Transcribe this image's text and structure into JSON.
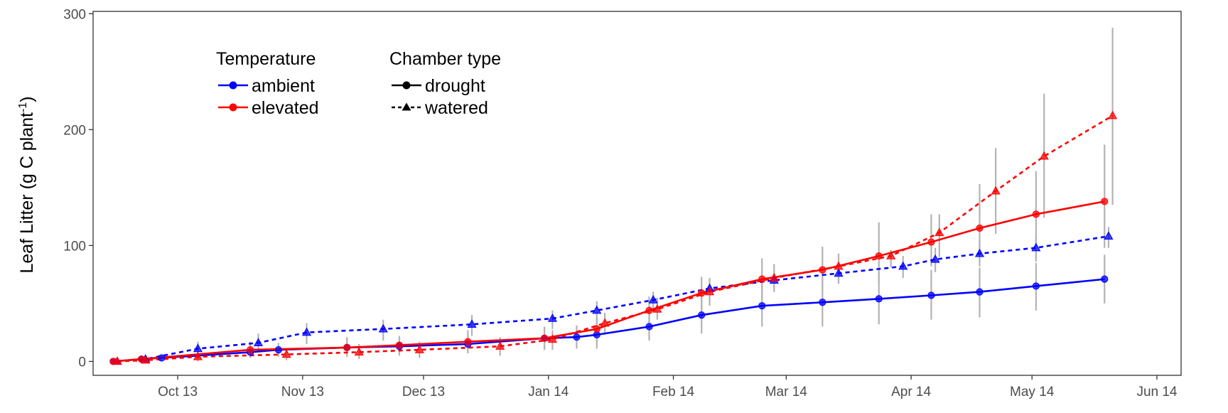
{
  "chart_data": {
    "type": "line",
    "ylabel": "Leaf Litter (g C plant",
    "ylabel_sup": "-1",
    "ylabel_close": ")",
    "xlabel": "",
    "x_range": [
      "2013-09-10",
      "2014-06-07"
    ],
    "ylim": [
      -12,
      302
    ],
    "y_ticks": [
      0,
      100,
      200,
      300
    ],
    "x_ticks": [
      {
        "date": "2013-10-01",
        "label": "Oct 13"
      },
      {
        "date": "2013-11-01",
        "label": "Nov 13"
      },
      {
        "date": "2013-12-01",
        "label": "Dec 13"
      },
      {
        "date": "2014-01-01",
        "label": "Jan 14"
      },
      {
        "date": "2014-02-01",
        "label": "Feb 14"
      },
      {
        "date": "2014-03-01",
        "label": "Mar 14"
      },
      {
        "date": "2014-04-01",
        "label": "Apr 14"
      },
      {
        "date": "2014-05-01",
        "label": "May 14"
      },
      {
        "date": "2014-06-01",
        "label": "Jun 14"
      }
    ],
    "grid": false,
    "legend_placement": "top-left",
    "legend": {
      "temperature_title": "Temperature",
      "temperature_items": [
        {
          "label": "ambient",
          "color": "#0000ff"
        },
        {
          "label": "elevated",
          "color": "#ff0000"
        }
      ],
      "chamber_title": "Chamber type",
      "chamber_items": [
        {
          "label": "drought",
          "line": "solid",
          "marker": "circle"
        },
        {
          "label": "watered",
          "line": "dashed",
          "marker": "triangle"
        }
      ]
    },
    "errorbar_color": "#b3b3b3",
    "series": [
      {
        "name": "ambient drought",
        "temperature": "ambient",
        "chamber": "drought",
        "color": "#0000ff",
        "line": "solid",
        "marker": "circle",
        "points": [
          {
            "x": "2013-09-15",
            "y": 0,
            "lo": 0,
            "hi": 1
          },
          {
            "x": "2013-09-22",
            "y": 2,
            "lo": 0,
            "hi": 4
          },
          {
            "x": "2013-09-27",
            "y": 3,
            "lo": 1,
            "hi": 5
          },
          {
            "x": "2013-10-19",
            "y": 8,
            "lo": 3,
            "hi": 13
          },
          {
            "x": "2013-10-26",
            "y": 10,
            "lo": 4,
            "hi": 16
          },
          {
            "x": "2013-11-12",
            "y": 12,
            "lo": 4,
            "hi": 20
          },
          {
            "x": "2013-11-25",
            "y": 13,
            "lo": 6,
            "hi": 20
          },
          {
            "x": "2013-12-12",
            "y": 15,
            "lo": 7,
            "hi": 23
          },
          {
            "x": "2013-12-31",
            "y": 20,
            "lo": 10,
            "hi": 30
          },
          {
            "x": "2014-01-08",
            "y": 21,
            "lo": 11,
            "hi": 31
          },
          {
            "x": "2014-01-13",
            "y": 23,
            "lo": 11,
            "hi": 35
          },
          {
            "x": "2014-01-26",
            "y": 30,
            "lo": 18,
            "hi": 43
          },
          {
            "x": "2014-02-08",
            "y": 40,
            "lo": 24,
            "hi": 57
          },
          {
            "x": "2014-02-23",
            "y": 48,
            "lo": 30,
            "hi": 68
          },
          {
            "x": "2014-03-10",
            "y": 51,
            "lo": 30,
            "hi": 71
          },
          {
            "x": "2014-03-24",
            "y": 54,
            "lo": 32,
            "hi": 77
          },
          {
            "x": "2014-04-06",
            "y": 57,
            "lo": 36,
            "hi": 79
          },
          {
            "x": "2014-04-18",
            "y": 60,
            "lo": 38,
            "hi": 81
          },
          {
            "x": "2014-05-02",
            "y": 65,
            "lo": 44,
            "hi": 85
          },
          {
            "x": "2014-05-19",
            "y": 71,
            "lo": 50,
            "hi": 92
          }
        ]
      },
      {
        "name": "ambient watered",
        "temperature": "ambient",
        "chamber": "watered",
        "color": "#0000ff",
        "line": "dashed",
        "marker": "triangle",
        "points": [
          {
            "x": "2013-09-16",
            "y": 0,
            "lo": 0,
            "hi": 1
          },
          {
            "x": "2013-09-23",
            "y": 2,
            "lo": 0,
            "hi": 4
          },
          {
            "x": "2013-10-06",
            "y": 11,
            "lo": 5,
            "hi": 17
          },
          {
            "x": "2013-10-21",
            "y": 16,
            "lo": 8,
            "hi": 24
          },
          {
            "x": "2013-11-02",
            "y": 25,
            "lo": 15,
            "hi": 33
          },
          {
            "x": "2013-11-21",
            "y": 28,
            "lo": 18,
            "hi": 36
          },
          {
            "x": "2013-12-13",
            "y": 32,
            "lo": 22,
            "hi": 40
          },
          {
            "x": "2014-01-02",
            "y": 37,
            "lo": 28,
            "hi": 44
          },
          {
            "x": "2014-01-13",
            "y": 44,
            "lo": 34,
            "hi": 52
          },
          {
            "x": "2014-01-27",
            "y": 53,
            "lo": 45,
            "hi": 60
          },
          {
            "x": "2014-02-10",
            "y": 63,
            "lo": 55,
            "hi": 71
          },
          {
            "x": "2014-02-26",
            "y": 70,
            "lo": 60,
            "hi": 78
          },
          {
            "x": "2014-03-14",
            "y": 76,
            "lo": 67,
            "hi": 85
          },
          {
            "x": "2014-03-30",
            "y": 82,
            "lo": 72,
            "hi": 91
          },
          {
            "x": "2014-04-07",
            "y": 88,
            "lo": 77,
            "hi": 98
          },
          {
            "x": "2014-04-18",
            "y": 93,
            "lo": 82,
            "hi": 104
          },
          {
            "x": "2014-05-02",
            "y": 98,
            "lo": 86,
            "hi": 109
          },
          {
            "x": "2014-05-20",
            "y": 108,
            "lo": 98,
            "hi": 116
          }
        ]
      },
      {
        "name": "elevated drought",
        "temperature": "elevated",
        "chamber": "drought",
        "color": "#ff0000",
        "line": "solid",
        "marker": "circle",
        "points": [
          {
            "x": "2013-09-15",
            "y": 0,
            "lo": 0,
            "hi": 1
          },
          {
            "x": "2013-09-22",
            "y": 2,
            "lo": 0,
            "hi": 4
          },
          {
            "x": "2013-10-19",
            "y": 10,
            "lo": 3,
            "hi": 17
          },
          {
            "x": "2013-11-12",
            "y": 12,
            "lo": 4,
            "hi": 21
          },
          {
            "x": "2013-11-25",
            "y": 14,
            "lo": 5,
            "hi": 22
          },
          {
            "x": "2013-12-12",
            "y": 17,
            "lo": 7,
            "hi": 27
          },
          {
            "x": "2013-12-31",
            "y": 20,
            "lo": 10,
            "hi": 30
          },
          {
            "x": "2014-01-13",
            "y": 28,
            "lo": 18,
            "hi": 38
          },
          {
            "x": "2014-01-26",
            "y": 44,
            "lo": 32,
            "hi": 56
          },
          {
            "x": "2014-02-08",
            "y": 59,
            "lo": 45,
            "hi": 73
          },
          {
            "x": "2014-02-23",
            "y": 71,
            "lo": 55,
            "hi": 89
          },
          {
            "x": "2014-03-10",
            "y": 79,
            "lo": 62,
            "hi": 99
          },
          {
            "x": "2014-03-24",
            "y": 91,
            "lo": 68,
            "hi": 120
          },
          {
            "x": "2014-04-06",
            "y": 103,
            "lo": 82,
            "hi": 127
          },
          {
            "x": "2014-04-18",
            "y": 115,
            "lo": 89,
            "hi": 153
          },
          {
            "x": "2014-05-02",
            "y": 127,
            "lo": 89,
            "hi": 164
          },
          {
            "x": "2014-05-19",
            "y": 138,
            "lo": 98,
            "hi": 187
          }
        ]
      },
      {
        "name": "elevated watered",
        "temperature": "elevated",
        "chamber": "watered",
        "color": "#ff0000",
        "line": "dashed",
        "marker": "triangle",
        "points": [
          {
            "x": "2013-09-16",
            "y": 0,
            "lo": 0,
            "hi": 1
          },
          {
            "x": "2013-09-23",
            "y": 1,
            "lo": 0,
            "hi": 3
          },
          {
            "x": "2013-10-06",
            "y": 4,
            "lo": 0,
            "hi": 8
          },
          {
            "x": "2013-10-28",
            "y": 6,
            "lo": 1,
            "hi": 11
          },
          {
            "x": "2013-11-15",
            "y": 8,
            "lo": 2,
            "hi": 15
          },
          {
            "x": "2013-11-30",
            "y": 10,
            "lo": 3,
            "hi": 17
          },
          {
            "x": "2013-12-20",
            "y": 13,
            "lo": 5,
            "hi": 21
          },
          {
            "x": "2014-01-02",
            "y": 19,
            "lo": 10,
            "hi": 27
          },
          {
            "x": "2014-01-15",
            "y": 33,
            "lo": 23,
            "hi": 42
          },
          {
            "x": "2014-01-28",
            "y": 45,
            "lo": 36,
            "hi": 55
          },
          {
            "x": "2014-02-10",
            "y": 60,
            "lo": 48,
            "hi": 72
          },
          {
            "x": "2014-02-26",
            "y": 72,
            "lo": 60,
            "hi": 84
          },
          {
            "x": "2014-03-14",
            "y": 82,
            "lo": 70,
            "hi": 93
          },
          {
            "x": "2014-03-27",
            "y": 91,
            "lo": 81,
            "hi": 96
          },
          {
            "x": "2014-04-08",
            "y": 111,
            "lo": 90,
            "hi": 127
          },
          {
            "x": "2014-04-22",
            "y": 147,
            "lo": 110,
            "hi": 184
          },
          {
            "x": "2014-05-04",
            "y": 177,
            "lo": 124,
            "hi": 231
          },
          {
            "x": "2014-05-21",
            "y": 212,
            "lo": 135,
            "hi": 288
          }
        ]
      }
    ]
  }
}
